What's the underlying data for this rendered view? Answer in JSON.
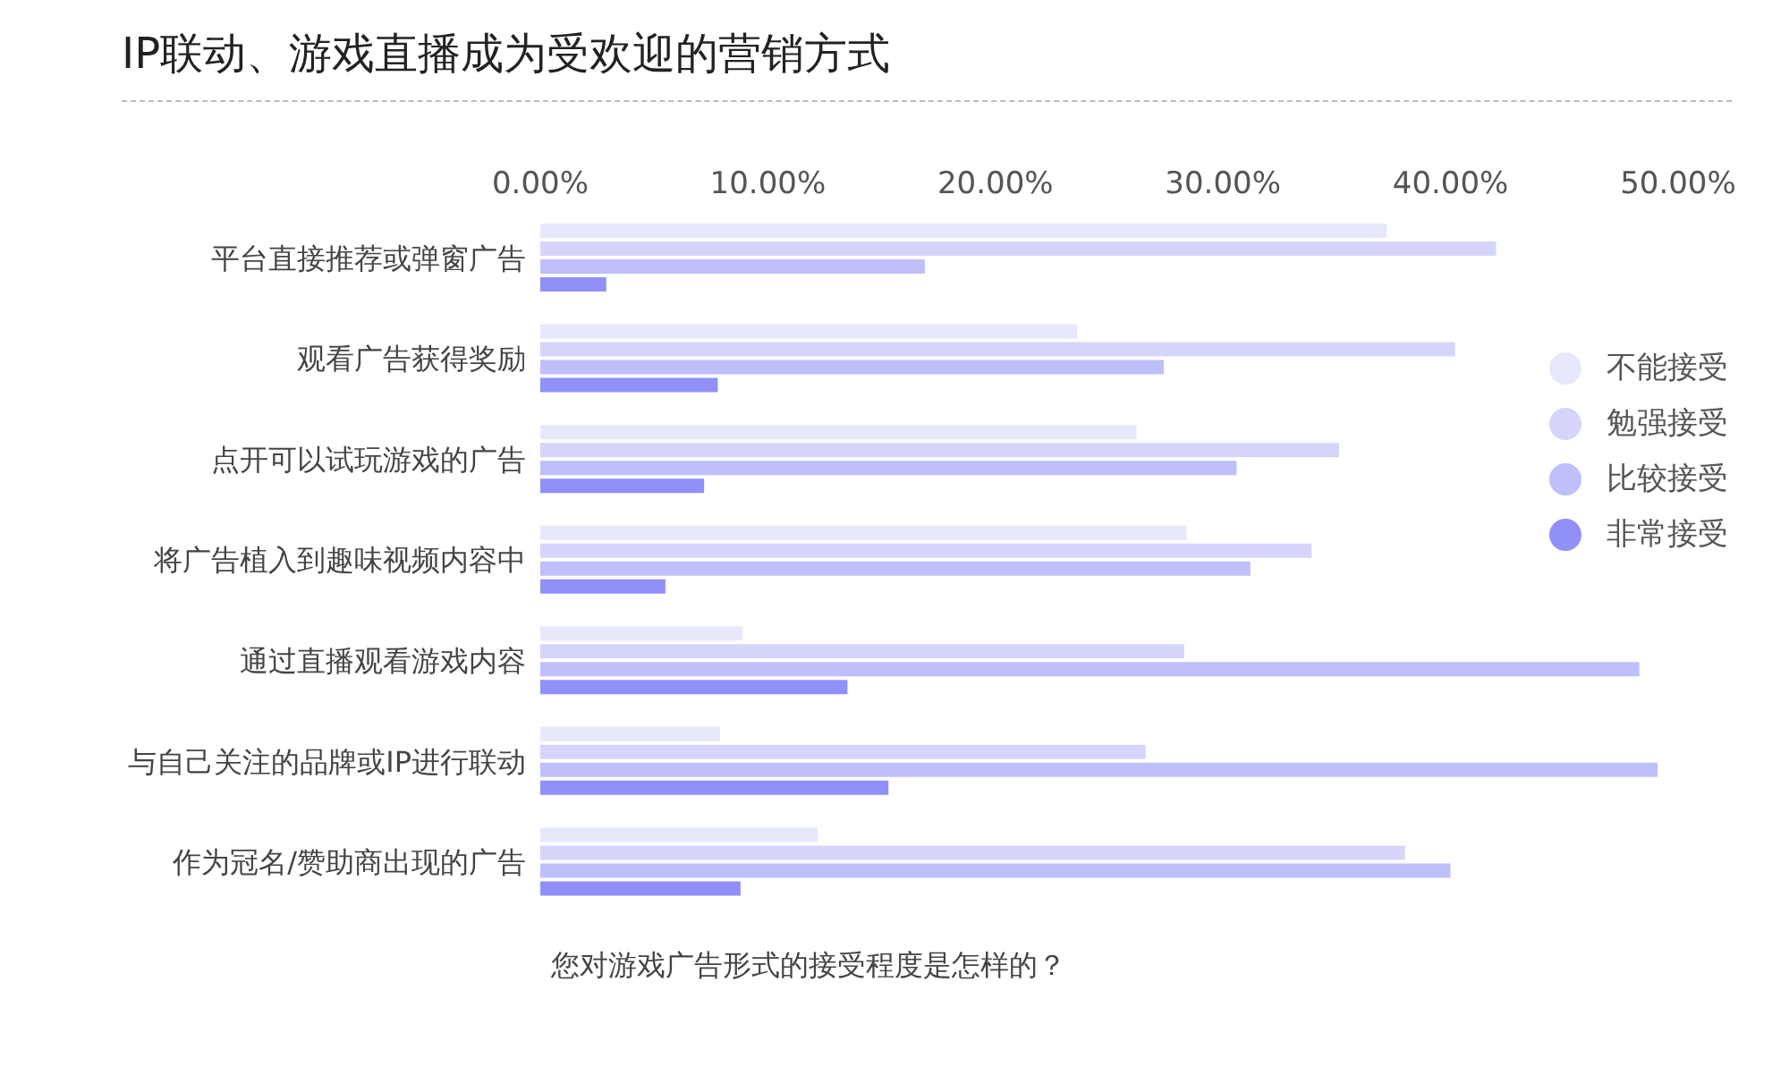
{
  "chart_data": {
    "type": "bar",
    "orientation": "horizontal",
    "title": "IP联动、游戏直播成为受欢迎的营销方式",
    "categories": [
      "平台直接推荐或弹窗广告",
      "观看广告获得奖励",
      "点开可以试玩游戏的广告",
      "将广告植入到趣味视频内容中",
      "通过直播观看游戏内容",
      "与自己关注的品牌或IP进行联动",
      "作为冠名/赞助商出现的广告"
    ],
    "series": [
      {
        "name": "不能接受",
        "color": "#e8e8fc",
        "values": [
          37.2,
          23.6,
          26.2,
          28.4,
          8.9,
          7.9,
          12.2
        ]
      },
      {
        "name": "勉强接受",
        "color": "#d5d5fc",
        "values": [
          42.0,
          40.2,
          35.1,
          33.9,
          28.3,
          26.6,
          38.0
        ]
      },
      {
        "name": "比较接受",
        "color": "#bfbffb",
        "values": [
          16.9,
          27.4,
          30.6,
          31.2,
          48.3,
          49.1,
          40.0
        ]
      },
      {
        "name": "非常接受",
        "color": "#9090f8",
        "values": [
          2.9,
          7.8,
          7.2,
          5.5,
          13.5,
          15.3,
          8.8
        ]
      }
    ],
    "xlim": [
      0,
      50
    ],
    "xticks": [
      {
        "value": 0,
        "label": "0.00%"
      },
      {
        "value": 10,
        "label": "10.00%"
      },
      {
        "value": 20,
        "label": "20.00%"
      },
      {
        "value": 30,
        "label": "30.00%"
      },
      {
        "value": 40,
        "label": "40.00%"
      },
      {
        "value": 50,
        "label": "50.00%"
      }
    ],
    "grid": false,
    "legend": "right",
    "annotations": [
      "您对游戏广告形式的接受程度是怎样的？"
    ]
  }
}
